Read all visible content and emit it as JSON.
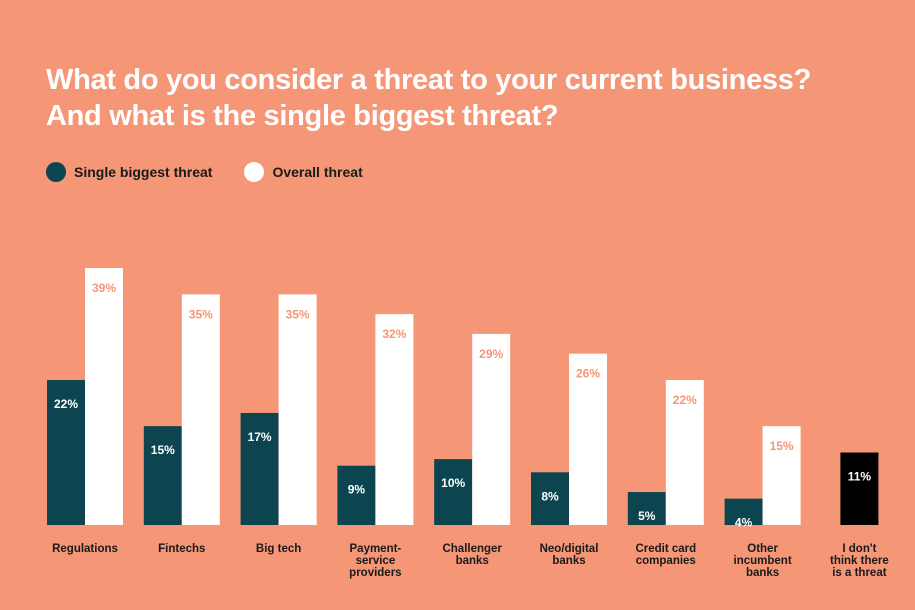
{
  "title": {
    "line1": "What do you consider a threat to your current business?",
    "line2": "And what is the single biggest threat?"
  },
  "legend": [
    {
      "label": "Single biggest threat",
      "color": "#0c4550"
    },
    {
      "label": "Overall threat",
      "color": "#ffffff"
    }
  ],
  "colors": {
    "background": "#f59677",
    "single": "#0c4550",
    "overall": "#ffffff",
    "no_threat": "#000000",
    "overall_label": "#f59677"
  },
  "chart_data": {
    "type": "bar",
    "title": "What do you consider a threat to your current business? And what is the single biggest threat?",
    "categories": [
      "Regulations",
      "Fintechs",
      "Big tech",
      "Payment-service providers",
      "Challenger banks",
      "Neo/digital banks",
      "Credit card companies",
      "Other incumbent banks",
      "I don't think there is a threat"
    ],
    "category_lines": [
      [
        "Regulations"
      ],
      [
        "Fintechs"
      ],
      [
        "Big tech"
      ],
      [
        "Payment-",
        "service",
        "providers"
      ],
      [
        "Challenger",
        "banks"
      ],
      [
        "Neo/digital",
        "banks"
      ],
      [
        "Credit card",
        "companies"
      ],
      [
        "Other",
        "incumbent",
        "banks"
      ],
      [
        "I don't",
        "think there",
        "is a threat"
      ]
    ],
    "series": [
      {
        "name": "Single biggest threat",
        "values": [
          22,
          15,
          17,
          9,
          10,
          8,
          5,
          4,
          11
        ]
      },
      {
        "name": "Overall threat",
        "values": [
          39,
          35,
          35,
          32,
          29,
          26,
          22,
          15,
          null
        ]
      }
    ],
    "units": "%",
    "ylim": [
      0,
      39
    ],
    "grid": false,
    "legend_position": "top-left"
  }
}
